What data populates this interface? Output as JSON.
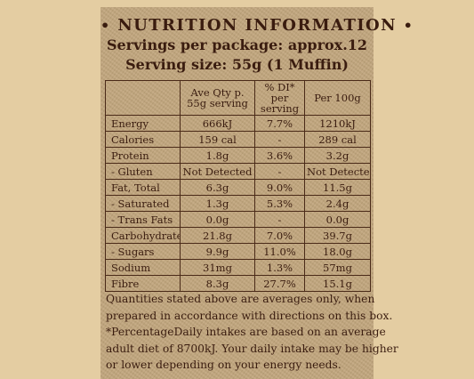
{
  "header": {
    "dot": "•",
    "title": "NUTRITION INFORMATION",
    "servings_per_package": "Servings per package: approx.12",
    "serving_size": "Serving size: 55g (1 Muffin)"
  },
  "table": {
    "headers": [
      "",
      "Ave Qty p. 55g serving",
      "% DI* per serving",
      "Per 100g"
    ],
    "rows": [
      [
        "Energy",
        "666kJ",
        "7.7%",
        "1210kJ"
      ],
      [
        "Calories",
        "159 cal",
        "-",
        "289 cal"
      ],
      [
        "Protein",
        "1.8g",
        "3.6%",
        "3.2g"
      ],
      [
        "- Gluten",
        "Not Detected",
        "-",
        "Not Detected"
      ],
      [
        "Fat, Total",
        "6.3g",
        "9.0%",
        "11.5g"
      ],
      [
        "- Saturated",
        "1.3g",
        "5.3%",
        "2.4g"
      ],
      [
        "- Trans Fats",
        "0.0g",
        "-",
        "0.0g"
      ],
      [
        "Carbohydrate",
        "21.8g",
        "7.0%",
        "39.7g"
      ],
      [
        "- Sugars",
        "9.9g",
        "11.0%",
        "18.0g"
      ],
      [
        "Sodium",
        "31mg",
        "1.3%",
        "57mg"
      ],
      [
        "Fibre",
        "8.3g",
        "27.7%",
        "15.1g"
      ]
    ]
  },
  "notes": [
    "Quantities stated above are averages only, when",
    "prepared in accordance with directions on this box.",
    "*PercentageDaily intakes are based on an average",
    "adult diet of 8700kJ. Your daily intake may be higher",
    "or lower depending on your energy needs."
  ]
}
